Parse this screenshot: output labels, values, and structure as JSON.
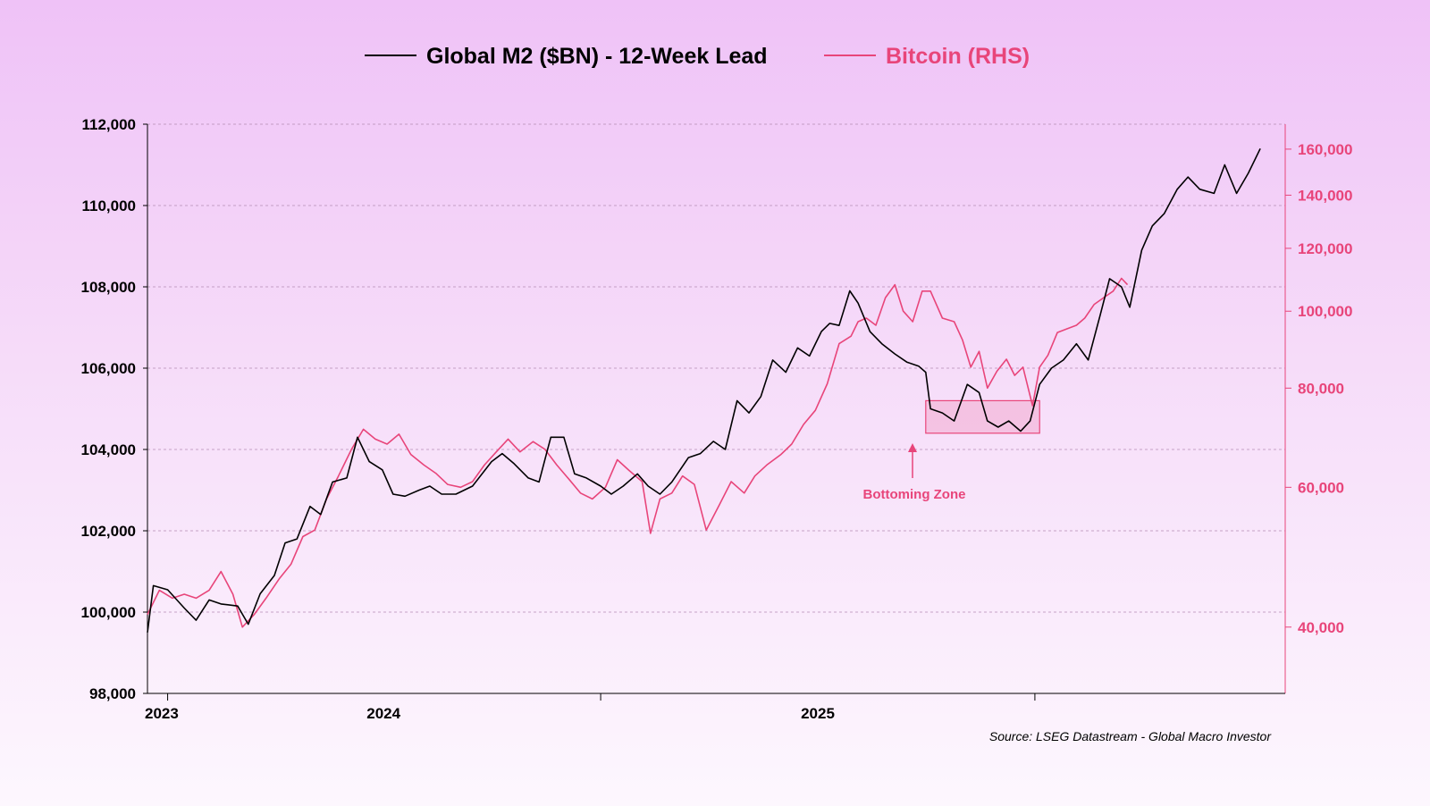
{
  "chart_data": {
    "type": "line",
    "legend": {
      "position": "top-center",
      "items": [
        {
          "label": "Global M2 ($BN) - 12-Week Lead",
          "color": "#000000"
        },
        {
          "label": "Bitcoin (RHS)",
          "color": "#e8457a"
        }
      ]
    },
    "grid": true,
    "x_axis": {
      "tick_labels": [
        "2023",
        "2024",
        "2025"
      ],
      "range": [
        "2022-12-15",
        "2025-07-31"
      ]
    },
    "y_left": {
      "range": [
        98000,
        112000
      ],
      "ticks": [
        98000,
        100000,
        102000,
        104000,
        106000,
        108000,
        110000,
        112000
      ],
      "tick_labels": [
        "98,000",
        "100,000",
        "102,000",
        "104,000",
        "106,000",
        "108,000",
        "110,000",
        "112,000"
      ]
    },
    "y_right": {
      "scale": "log",
      "range": [
        33000,
        172000
      ],
      "ticks": [
        40000,
        60000,
        80000,
        100000,
        120000,
        140000,
        160000
      ],
      "tick_labels": [
        "40,000",
        "60,000",
        "80,000",
        "100,000",
        "120,000",
        "140,000",
        "160,000"
      ]
    },
    "series": [
      {
        "name": "Global M2 ($BN) - 12-Week Lead",
        "axis": "left",
        "color": "#000000",
        "points": [
          [
            "2022-12-15",
            99500
          ],
          [
            "2022-12-20",
            100650
          ],
          [
            "2023-01-01",
            100550
          ],
          [
            "2023-01-15",
            100100
          ],
          [
            "2023-01-25",
            99800
          ],
          [
            "2023-02-05",
            100300
          ],
          [
            "2023-02-15",
            100200
          ],
          [
            "2023-03-01",
            100150
          ],
          [
            "2023-03-10",
            99700
          ],
          [
            "2023-03-20",
            100450
          ],
          [
            "2023-04-01",
            100900
          ],
          [
            "2023-04-10",
            101700
          ],
          [
            "2023-04-20",
            101800
          ],
          [
            "2023-05-01",
            102600
          ],
          [
            "2023-05-10",
            102400
          ],
          [
            "2023-05-20",
            103200
          ],
          [
            "2023-06-01",
            103300
          ],
          [
            "2023-06-10",
            104300
          ],
          [
            "2023-06-20",
            103700
          ],
          [
            "2023-07-01",
            103500
          ],
          [
            "2023-07-10",
            102900
          ],
          [
            "2023-07-20",
            102850
          ],
          [
            "2023-08-01",
            103000
          ],
          [
            "2023-08-10",
            103100
          ],
          [
            "2023-08-20",
            102900
          ],
          [
            "2023-09-01",
            102900
          ],
          [
            "2023-09-15",
            103100
          ],
          [
            "2023-10-01",
            103700
          ],
          [
            "2023-10-10",
            103900
          ],
          [
            "2023-10-20",
            103650
          ],
          [
            "2023-11-01",
            103300
          ],
          [
            "2023-11-10",
            103200
          ],
          [
            "2023-11-20",
            104300
          ],
          [
            "2023-12-01",
            104300
          ],
          [
            "2023-12-10",
            103400
          ],
          [
            "2023-12-20",
            103300
          ],
          [
            "2024-01-01",
            103100
          ],
          [
            "2024-01-10",
            102900
          ],
          [
            "2024-01-20",
            103100
          ],
          [
            "2024-02-01",
            103400
          ],
          [
            "2024-02-10",
            103100
          ],
          [
            "2024-02-20",
            102900
          ],
          [
            "2024-03-01",
            103200
          ],
          [
            "2024-03-15",
            103800
          ],
          [
            "2024-03-25",
            103900
          ],
          [
            "2024-04-05",
            104200
          ],
          [
            "2024-04-15",
            104000
          ],
          [
            "2024-04-25",
            105200
          ],
          [
            "2024-05-05",
            104900
          ],
          [
            "2024-05-15",
            105300
          ],
          [
            "2024-05-25",
            106200
          ],
          [
            "2024-06-05",
            105900
          ],
          [
            "2024-06-15",
            106500
          ],
          [
            "2024-06-25",
            106300
          ],
          [
            "2024-07-05",
            106900
          ],
          [
            "2024-07-12",
            107100
          ],
          [
            "2024-07-20",
            107050
          ],
          [
            "2024-07-29",
            107900
          ],
          [
            "2024-08-05",
            107600
          ],
          [
            "2024-08-15",
            106900
          ],
          [
            "2024-08-25",
            106600
          ],
          [
            "2024-09-05",
            106350
          ],
          [
            "2024-09-15",
            106150
          ],
          [
            "2024-09-25",
            106050
          ],
          [
            "2024-10-01",
            105900
          ],
          [
            "2024-10-05",
            105000
          ],
          [
            "2024-10-15",
            104900
          ],
          [
            "2024-10-25",
            104700
          ],
          [
            "2024-11-05",
            105600
          ],
          [
            "2024-11-15",
            105400
          ],
          [
            "2024-11-22",
            104700
          ],
          [
            "2024-12-01",
            104550
          ],
          [
            "2024-12-10",
            104700
          ],
          [
            "2024-12-20",
            104450
          ],
          [
            "2024-12-28",
            104700
          ],
          [
            "2025-01-05",
            105600
          ],
          [
            "2025-01-15",
            106000
          ],
          [
            "2025-01-25",
            106200
          ],
          [
            "2025-02-05",
            106600
          ],
          [
            "2025-02-15",
            106200
          ],
          [
            "2025-02-25",
            107300
          ],
          [
            "2025-03-05",
            108200
          ],
          [
            "2025-03-15",
            108000
          ],
          [
            "2025-03-22",
            107500
          ],
          [
            "2025-04-01",
            108900
          ],
          [
            "2025-04-10",
            109500
          ],
          [
            "2025-04-20",
            109800
          ],
          [
            "2025-05-01",
            110400
          ],
          [
            "2025-05-10",
            110700
          ],
          [
            "2025-05-20",
            110400
          ],
          [
            "2025-06-01",
            110300
          ],
          [
            "2025-06-10",
            111000
          ],
          [
            "2025-06-20",
            110300
          ],
          [
            "2025-06-30",
            110800
          ],
          [
            "2025-07-10",
            111400
          ]
        ]
      },
      {
        "name": "Bitcoin (RHS)",
        "axis": "right",
        "color": "#e8457a",
        "points": [
          [
            "2022-12-15",
            41500
          ],
          [
            "2022-12-25",
            44500
          ],
          [
            "2023-01-05",
            43500
          ],
          [
            "2023-01-15",
            44000
          ],
          [
            "2023-01-25",
            43500
          ],
          [
            "2023-02-05",
            44500
          ],
          [
            "2023-02-15",
            47000
          ],
          [
            "2023-02-25",
            44000
          ],
          [
            "2023-03-05",
            40000
          ],
          [
            "2023-03-15",
            41500
          ],
          [
            "2023-03-25",
            43500
          ],
          [
            "2023-04-05",
            46000
          ],
          [
            "2023-04-15",
            48000
          ],
          [
            "2023-04-25",
            52000
          ],
          [
            "2023-05-05",
            53000
          ],
          [
            "2023-05-15",
            58000
          ],
          [
            "2023-05-25",
            62000
          ],
          [
            "2023-06-05",
            67000
          ],
          [
            "2023-06-15",
            71000
          ],
          [
            "2023-06-25",
            69000
          ],
          [
            "2023-07-05",
            68000
          ],
          [
            "2023-07-15",
            70000
          ],
          [
            "2023-07-25",
            66000
          ],
          [
            "2023-08-05",
            64000
          ],
          [
            "2023-08-15",
            62500
          ],
          [
            "2023-08-25",
            60500
          ],
          [
            "2023-09-05",
            60000
          ],
          [
            "2023-09-15",
            61000
          ],
          [
            "2023-09-25",
            64000
          ],
          [
            "2023-10-05",
            66500
          ],
          [
            "2023-10-15",
            69000
          ],
          [
            "2023-10-25",
            66500
          ],
          [
            "2023-11-05",
            68500
          ],
          [
            "2023-11-15",
            67000
          ],
          [
            "2023-11-25",
            64000
          ],
          [
            "2023-12-05",
            61500
          ],
          [
            "2023-12-15",
            59000
          ],
          [
            "2023-12-25",
            58000
          ],
          [
            "2024-01-05",
            60000
          ],
          [
            "2024-01-15",
            65000
          ],
          [
            "2024-01-25",
            63000
          ],
          [
            "2024-02-05",
            61000
          ],
          [
            "2024-02-12",
            52500
          ],
          [
            "2024-02-20",
            58000
          ],
          [
            "2024-03-01",
            59000
          ],
          [
            "2024-03-10",
            62000
          ],
          [
            "2024-03-20",
            60500
          ],
          [
            "2024-03-30",
            53000
          ],
          [
            "2024-04-10",
            57000
          ],
          [
            "2024-04-20",
            61000
          ],
          [
            "2024-05-01",
            59000
          ],
          [
            "2024-05-10",
            62000
          ],
          [
            "2024-05-20",
            64000
          ],
          [
            "2024-06-01",
            66000
          ],
          [
            "2024-06-10",
            68000
          ],
          [
            "2024-06-20",
            72000
          ],
          [
            "2024-06-30",
            75000
          ],
          [
            "2024-07-10",
            81000
          ],
          [
            "2024-07-20",
            91000
          ],
          [
            "2024-07-30",
            93000
          ],
          [
            "2024-08-05",
            97000
          ],
          [
            "2024-08-12",
            98000
          ],
          [
            "2024-08-20",
            96000
          ],
          [
            "2024-08-28",
            104000
          ],
          [
            "2024-09-05",
            108000
          ],
          [
            "2024-09-12",
            100000
          ],
          [
            "2024-09-20",
            97000
          ],
          [
            "2024-09-28",
            106000
          ],
          [
            "2024-10-05",
            106000
          ],
          [
            "2024-10-15",
            98000
          ],
          [
            "2024-10-25",
            97000
          ],
          [
            "2024-11-01",
            92000
          ],
          [
            "2024-11-08",
            85000
          ],
          [
            "2024-11-15",
            89000
          ],
          [
            "2024-11-22",
            80000
          ],
          [
            "2024-11-30",
            84000
          ],
          [
            "2024-12-08",
            87000
          ],
          [
            "2024-12-15",
            83000
          ],
          [
            "2024-12-22",
            85000
          ],
          [
            "2024-12-30",
            76000
          ],
          [
            "2025-01-05",
            85000
          ],
          [
            "2025-01-12",
            88000
          ],
          [
            "2025-01-20",
            94000
          ],
          [
            "2025-01-28",
            95000
          ],
          [
            "2025-02-05",
            96000
          ],
          [
            "2025-02-12",
            98000
          ],
          [
            "2025-02-20",
            102000
          ],
          [
            "2025-02-28",
            104000
          ],
          [
            "2025-03-08",
            106000
          ],
          [
            "2025-03-15",
            110000
          ],
          [
            "2025-03-20",
            108000
          ]
        ]
      }
    ],
    "annotations": [
      {
        "label": "Bottoming Zone",
        "box_x": [
          "2024-10-01",
          "2025-01-05"
        ],
        "box_y_left": [
          104400,
          105200
        ],
        "color": "#e8457a"
      }
    ],
    "source": "Source: LSEG Datastream - Global Macro Investor"
  }
}
